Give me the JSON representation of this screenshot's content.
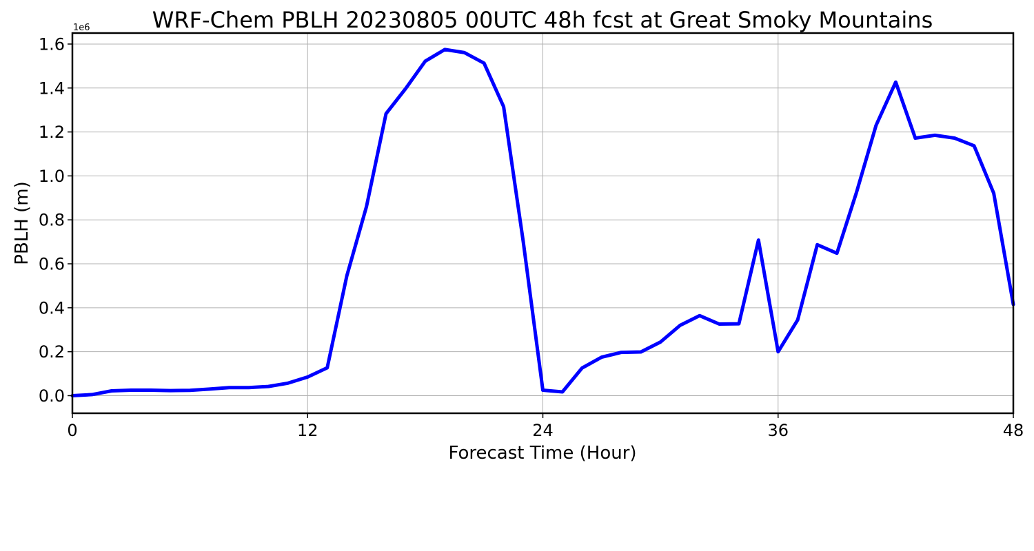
{
  "chart_data": {
    "type": "line",
    "title": "WRF-Chem PBLH  20230805 00UTC 48h fcst at Great Smoky Mountains",
    "xlabel": "Forecast Time (Hour)",
    "ylabel": "PBLH  (m)",
    "y_offset_label": "1e6",
    "xlim": [
      0,
      48
    ],
    "ylim": [
      -0.08,
      1.65
    ],
    "x_ticks": [
      0,
      12,
      24,
      36,
      48
    ],
    "x_tick_labels": [
      "0",
      "12",
      "24",
      "36",
      "48"
    ],
    "y_ticks": [
      0.0,
      0.2,
      0.4,
      0.6,
      0.8,
      1.0,
      1.2,
      1.4,
      1.6
    ],
    "y_tick_labels": [
      "0.0",
      "0.2",
      "0.4",
      "0.6",
      "0.8",
      "1.0",
      "1.2",
      "1.4",
      "1.6"
    ],
    "y_scale_multiplier": 1000000,
    "grid": true,
    "color": "#0000ff",
    "x": [
      0,
      1,
      2,
      3,
      4,
      5,
      6,
      7,
      8,
      9,
      10,
      11,
      12,
      13,
      14,
      15,
      16,
      17,
      18,
      19,
      20,
      21,
      22,
      23,
      24,
      25,
      26,
      27,
      28,
      29,
      30,
      31,
      32,
      33,
      34,
      35,
      36,
      37,
      38,
      39,
      40,
      41,
      42,
      43,
      44,
      45,
      46,
      47,
      48
    ],
    "values": [
      0.0,
      0.005,
      0.022,
      0.025,
      0.025,
      0.023,
      0.024,
      0.03,
      0.037,
      0.037,
      0.042,
      0.057,
      0.085,
      0.127,
      0.545,
      0.86,
      1.283,
      1.397,
      1.522,
      1.575,
      1.561,
      1.513,
      1.315,
      0.7,
      0.025,
      0.017,
      0.126,
      0.175,
      0.197,
      0.199,
      0.244,
      0.32,
      0.364,
      0.326,
      0.327,
      0.708,
      0.2,
      0.345,
      0.687,
      0.648,
      0.925,
      1.23,
      1.427,
      1.172,
      1.185,
      1.172,
      1.137,
      0.921,
      0.415
    ]
  }
}
